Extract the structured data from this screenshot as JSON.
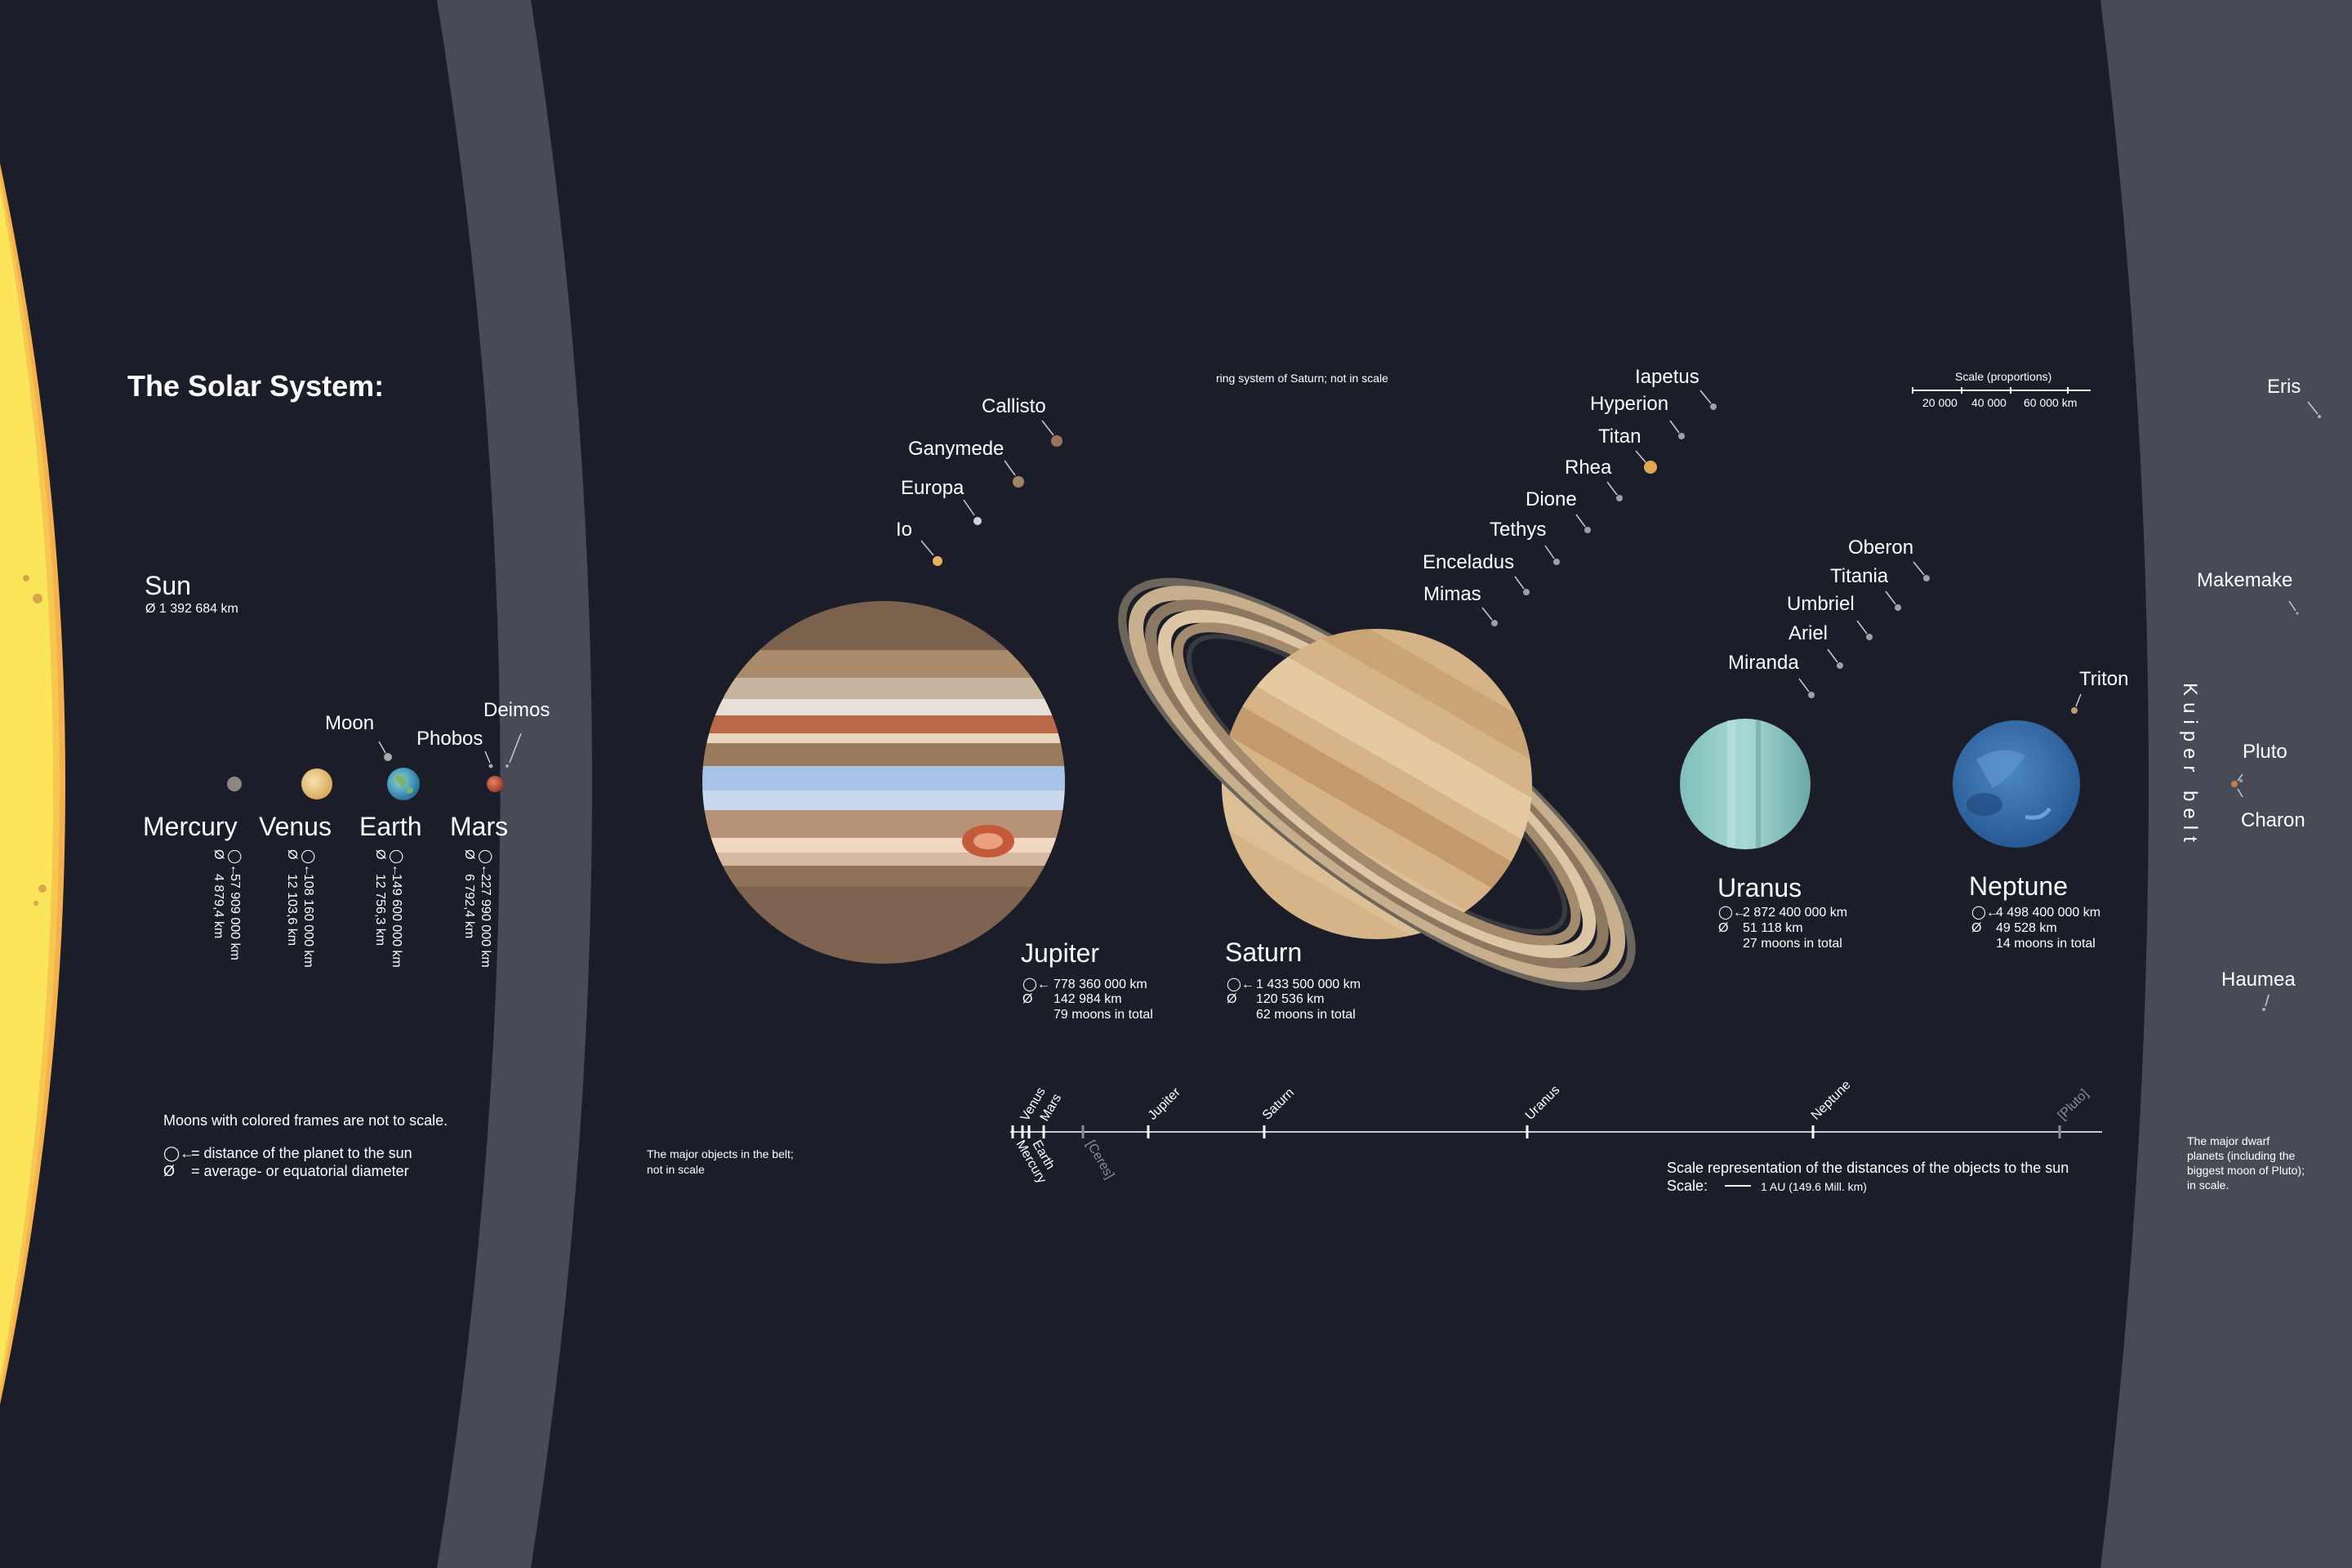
{
  "title": "The Solar System:",
  "colors": {
    "background": "#1b1e29",
    "belt": "#484b55",
    "sun_core": "#fbe55b",
    "sun_halo": "#f6b04c",
    "axis": "#ffffff",
    "orbit_line": "#c7cbd6"
  },
  "sun": {
    "name": "Sun",
    "diameter": "Ø 1 392 684 km"
  },
  "inner_planets": [
    {
      "name": "Mercury",
      "distance": "57 909 000 km",
      "diameter": "4 879,4 km",
      "color": "#8c8682"
    },
    {
      "name": "Venus",
      "distance": "108 160 000 km",
      "diameter": "12 103,6 km",
      "color": "#e9c98c"
    },
    {
      "name": "Earth",
      "distance": "149 600 000 km",
      "diameter": "12 756,3 km",
      "color": "#4fa3c7"
    },
    {
      "name": "Mars",
      "distance": "227 990 000 km",
      "diameter": "6 792,4 km",
      "color": "#c0553a"
    }
  ],
  "inner_moons": [
    {
      "name": "Moon"
    },
    {
      "name": "Phobos"
    },
    {
      "name": "Deimos"
    }
  ],
  "giants": [
    {
      "name": "Jupiter",
      "distance": "778 360 000 km",
      "diameter": "142 984 km",
      "moons": "79 moons in total"
    },
    {
      "name": "Saturn",
      "distance": "1 433 500 000 km",
      "diameter": "120 536 km",
      "moons": "62 moons in total"
    },
    {
      "name": "Uranus",
      "distance": "2 872 400 000 km",
      "diameter": "51 118 km",
      "moons": "27 moons in total"
    },
    {
      "name": "Neptune",
      "distance": "4 498 400 000 km",
      "diameter": "49 528 km",
      "moons": "14 moons in total"
    }
  ],
  "jupiter_moons": [
    "Callisto",
    "Ganymede",
    "Europa",
    "Io"
  ],
  "saturn_moons": [
    "Iapetus",
    "Hyperion",
    "Titan",
    "Rhea",
    "Dione",
    "Tethys",
    "Enceladus",
    "Mimas"
  ],
  "uranus_moons": [
    "Oberon",
    "Titania",
    "Umbriel",
    "Ariel",
    "Miranda"
  ],
  "neptune_moons": [
    "Triton"
  ],
  "dwarf_planets": [
    "Eris",
    "Makemake",
    "Pluto",
    "Charon",
    "Haumea"
  ],
  "kuiper_label": "Kuiper belt",
  "notes": {
    "ring_note": "ring system of Saturn; not in scale",
    "colored_frames": "Moons with colored frames are not to scale.",
    "legend_distance": "= distance of the planet to the sun",
    "legend_diameter": "= average- or equatorial diameter",
    "belt_note_1": "The major objects in the belt;",
    "belt_note_2": "not in scale",
    "dwarf_note_1": "The major dwarf",
    "dwarf_note_2": "planets (including the",
    "dwarf_note_3": "biggest moon of Pluto);",
    "dwarf_note_4": "in scale.",
    "distance_scale_title": "Scale representation of the distances of the objects to the sun",
    "distance_scale_label": "Scale:",
    "distance_scale_unit": "1 AU (149.6 Mill. km)"
  },
  "size_scale": {
    "title": "Scale (proportions)",
    "ticks": [
      "20 000",
      "40 000",
      "60 000 km"
    ]
  },
  "distance_axis": {
    "above": [
      "Venus",
      "Mars",
      "Jupiter",
      "Saturn",
      "Uranus",
      "Neptune",
      "[Pluto]"
    ],
    "below": [
      "Earth",
      "Mercury",
      "[Ceres]"
    ]
  }
}
